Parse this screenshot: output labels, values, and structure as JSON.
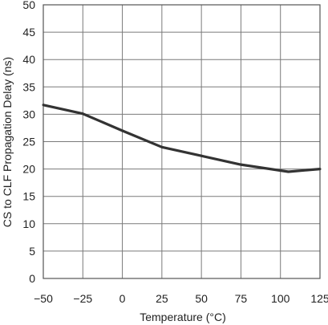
{
  "chart_data": {
    "type": "line",
    "title": "",
    "xlabel": "Temperature (°C)",
    "ylabel": "CS to CLF Propagation Delay (ns)",
    "xlim": [
      -50,
      125
    ],
    "ylim": [
      0,
      50
    ],
    "xticks": [
      "−50",
      "−25",
      "0",
      "25",
      "50",
      "75",
      "100",
      "125"
    ],
    "yticks": [
      "0",
      "5",
      "10",
      "15",
      "20",
      "25",
      "30",
      "35",
      "40",
      "45",
      "50"
    ],
    "grid": true,
    "series": [
      {
        "x": [
          -50,
          -25,
          0,
          25,
          50,
          75,
          105,
          125
        ],
        "values": [
          31.7,
          30.1,
          27.0,
          24.0,
          22.4,
          20.8,
          19.5,
          20.0
        ],
        "color": "#333333"
      }
    ]
  }
}
